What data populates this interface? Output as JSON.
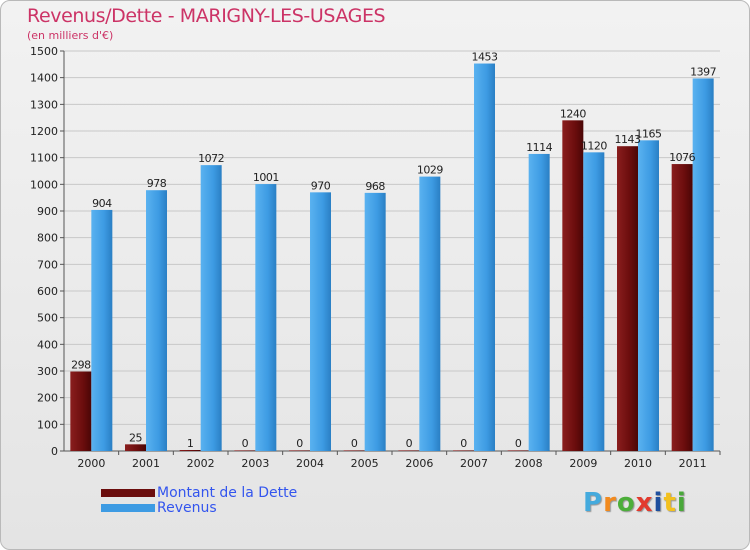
{
  "header": {
    "title": "Revenus/Dette - MARIGNY-LES-USAGES",
    "subtitle": "(en milliers d'€)"
  },
  "legend": {
    "items": [
      {
        "label": "Montant de la Dette",
        "color": "#6b0d0d"
      },
      {
        "label": "Revenus",
        "color": "#3d9be3"
      }
    ]
  },
  "logo": {
    "letters": [
      "P",
      "r",
      "o",
      "x",
      "i",
      "t",
      "i"
    ],
    "colors": [
      "#44aadd",
      "#f28a1e",
      "#4cae3a",
      "#e23a2e",
      "#1d4f9e",
      "#f2c01e",
      "#49a83a"
    ]
  },
  "chart_data": {
    "type": "bar",
    "title": "Revenus/Dette - MARIGNY-LES-USAGES",
    "ylabel": "(en milliers d'€)",
    "categories": [
      "2000",
      "2001",
      "2002",
      "2003",
      "2004",
      "2005",
      "2006",
      "2007",
      "2008",
      "2009",
      "2010",
      "2011"
    ],
    "series": [
      {
        "name": "Montant de la Dette",
        "values": [
          298,
          25,
          1,
          0,
          0,
          0,
          0,
          0,
          0,
          1240,
          1143,
          1076
        ],
        "color": "#6b0d0d"
      },
      {
        "name": "Revenus",
        "values": [
          904,
          978,
          1072,
          1001,
          970,
          968,
          1029,
          1453,
          1114,
          1120,
          1165,
          1397
        ],
        "color": "#3d9be3"
      }
    ],
    "ylim": [
      0,
      1500
    ],
    "yticks": [
      0,
      100,
      200,
      300,
      400,
      500,
      600,
      700,
      800,
      900,
      1000,
      1100,
      1200,
      1300,
      1400,
      1500
    ],
    "grid": true,
    "legend_position": "bottom-left"
  }
}
